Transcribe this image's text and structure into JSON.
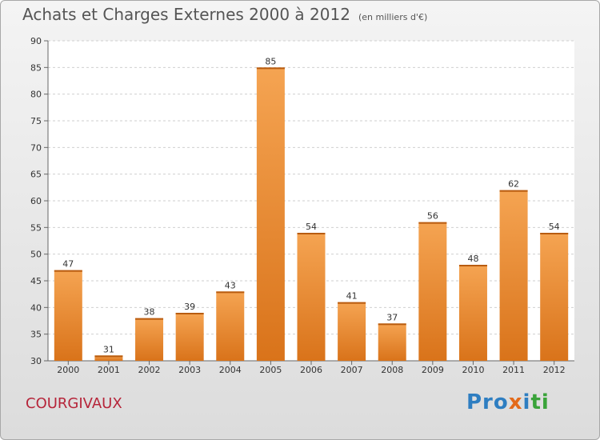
{
  "page": {
    "title": "Achats et Charges Externes 2000 à 2012",
    "title_unit": "(en milliers d'€)",
    "commune": "COURGIVAUX",
    "logo": {
      "parts": [
        "Pro",
        "x",
        "i",
        "ti"
      ]
    }
  },
  "colors": {
    "bar_light": "#f5a452",
    "bar_dark": "#d9731a",
    "commune": "#b6253a",
    "grid": "#cfcfcf"
  },
  "chart_data": {
    "type": "bar",
    "title": "Achats et Charges Externes 2000 à 2012",
    "subtitle": "(en milliers d'€)",
    "xlabel": "",
    "ylabel": "",
    "categories": [
      "2000",
      "2001",
      "2002",
      "2003",
      "2004",
      "2005",
      "2006",
      "2007",
      "2008",
      "2009",
      "2010",
      "2011",
      "2012"
    ],
    "values": [
      47,
      31,
      38,
      39,
      43,
      85,
      54,
      41,
      37,
      56,
      48,
      62,
      54
    ],
    "ylim": [
      30,
      90
    ],
    "yticks": [
      30,
      35,
      40,
      45,
      50,
      55,
      60,
      65,
      70,
      75,
      80,
      85,
      90
    ],
    "grid": true,
    "legend": "none"
  }
}
